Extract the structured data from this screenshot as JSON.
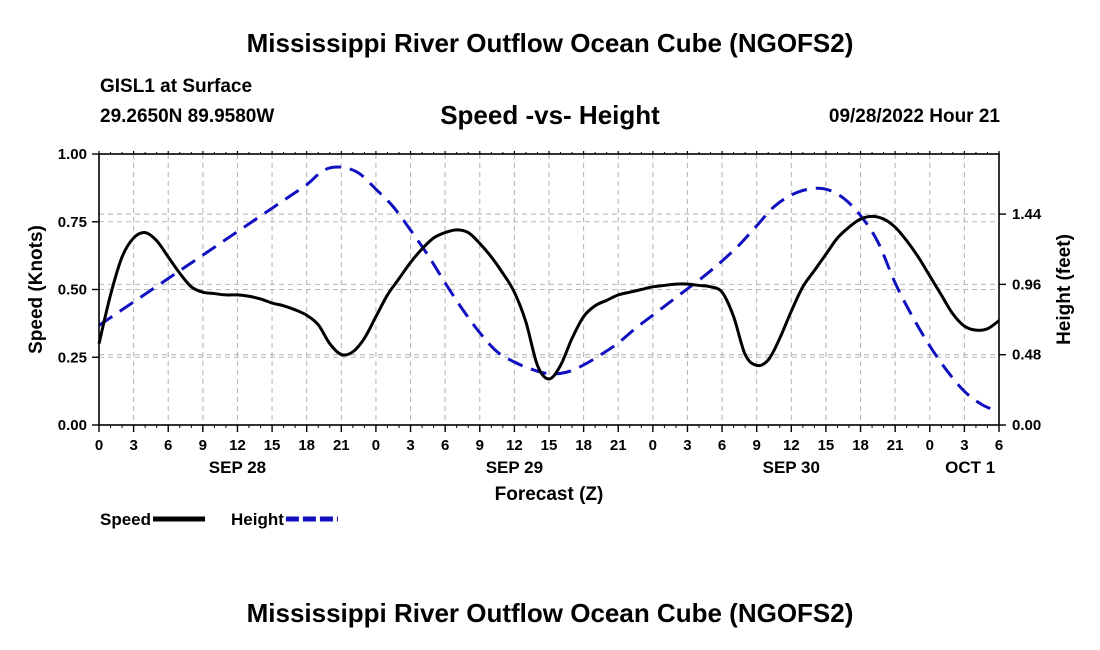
{
  "header": {
    "title": "Mississippi River Outflow Ocean Cube (NGOFS2)",
    "station": "GISL1 at Surface",
    "coords": "29.2650N  89.9580W",
    "subtitle": "Speed -vs- Height",
    "datetime": "09/28/2022 Hour 21"
  },
  "footer": {
    "title": "Mississippi River Outflow Ocean Cube (NGOFS2)"
  },
  "chart_data": {
    "type": "line",
    "title": "Speed -vs- Height",
    "xlabel": "Forecast (Z)",
    "ylabel": "Speed (Knots)",
    "y2label": "Height (feet)",
    "xlim": [
      0,
      78
    ],
    "ylim": [
      0,
      1
    ],
    "y2lim": [
      0,
      1.85
    ],
    "x_ticks": [
      0,
      3,
      6,
      9,
      12,
      15,
      18,
      21,
      24,
      27,
      30,
      33,
      36,
      39,
      42,
      45,
      48,
      51,
      54,
      57,
      60,
      63,
      66,
      69,
      72,
      75,
      78
    ],
    "x_tick_labels": [
      "0",
      "3",
      "6",
      "9",
      "12",
      "15",
      "18",
      "21",
      "0",
      "3",
      "6",
      "9",
      "12",
      "15",
      "18",
      "21",
      "0",
      "3",
      "6",
      "9",
      "12",
      "15",
      "18",
      "21",
      "0",
      "3",
      "6"
    ],
    "date_labels": [
      {
        "x": 12,
        "label": "SEP 28"
      },
      {
        "x": 36,
        "label": "SEP 29"
      },
      {
        "x": 60,
        "label": "SEP 30"
      },
      {
        "x": 75.5,
        "label": "OCT 1"
      }
    ],
    "y_ticks": [
      0,
      0.25,
      0.5,
      0.75,
      1.0
    ],
    "y_tick_labels": [
      "0.00",
      "0.25",
      "0.50",
      "0.75",
      "1.00"
    ],
    "y2_ticks": [
      0,
      0.48,
      0.96,
      1.44
    ],
    "y2_tick_labels": [
      "0.00",
      "0.48",
      "0.96",
      "1.44"
    ],
    "grid": true,
    "series": [
      {
        "name": "Speed",
        "axis": "left",
        "color": "#000000",
        "style": "solid",
        "x": [
          0,
          1,
          2,
          3,
          4,
          5,
          6,
          7,
          8,
          9,
          10,
          11,
          12,
          13,
          14,
          15,
          16,
          17,
          18,
          19,
          20,
          21,
          22,
          23,
          24,
          25,
          26,
          27,
          28,
          29,
          30,
          31,
          32,
          33,
          34,
          35,
          36,
          37,
          38,
          39,
          40,
          41,
          42,
          43,
          44,
          45,
          46,
          47,
          48,
          49,
          50,
          51,
          52,
          53,
          54,
          55,
          56,
          57,
          58,
          59,
          60,
          61,
          62,
          63,
          64,
          65,
          66,
          67,
          68,
          69,
          70,
          71,
          72,
          73,
          74,
          75,
          76,
          77,
          78
        ],
        "values": [
          0.3,
          0.48,
          0.62,
          0.69,
          0.71,
          0.68,
          0.62,
          0.56,
          0.51,
          0.49,
          0.485,
          0.48,
          0.48,
          0.475,
          0.465,
          0.45,
          0.44,
          0.425,
          0.405,
          0.37,
          0.3,
          0.26,
          0.27,
          0.32,
          0.4,
          0.48,
          0.54,
          0.6,
          0.65,
          0.69,
          0.71,
          0.72,
          0.71,
          0.67,
          0.62,
          0.56,
          0.49,
          0.38,
          0.22,
          0.17,
          0.22,
          0.32,
          0.4,
          0.44,
          0.46,
          0.48,
          0.49,
          0.5,
          0.51,
          0.515,
          0.52,
          0.52,
          0.515,
          0.51,
          0.49,
          0.4,
          0.26,
          0.22,
          0.24,
          0.32,
          0.42,
          0.51,
          0.57,
          0.63,
          0.69,
          0.73,
          0.76,
          0.77,
          0.76,
          0.73,
          0.68,
          0.62,
          0.55,
          0.48,
          0.41,
          0.365,
          0.35,
          0.355,
          0.385
        ]
      },
      {
        "name": "Height",
        "axis": "right",
        "color": "#1010c0",
        "style": "dashed",
        "x": [
          0,
          1.5,
          3,
          4.5,
          6,
          7.5,
          9,
          10.5,
          12,
          13.5,
          15,
          16.5,
          18,
          19.5,
          21,
          22.5,
          24,
          25.5,
          27,
          28.5,
          30,
          31.5,
          33,
          34.5,
          36,
          37.5,
          39,
          40.5,
          42,
          43.5,
          45,
          46.5,
          48,
          49.5,
          51,
          52.5,
          54,
          55.5,
          57,
          58.5,
          60,
          61.5,
          63,
          64.5,
          66,
          67.5,
          69,
          70.5,
          72,
          73.5,
          75,
          76.5,
          78
        ],
        "values": [
          0.68,
          0.76,
          0.84,
          0.92,
          1.0,
          1.08,
          1.16,
          1.24,
          1.32,
          1.4,
          1.48,
          1.56,
          1.64,
          1.74,
          1.76,
          1.72,
          1.61,
          1.49,
          1.33,
          1.16,
          0.97,
          0.79,
          0.63,
          0.5,
          0.43,
          0.38,
          0.35,
          0.36,
          0.41,
          0.48,
          0.56,
          0.66,
          0.75,
          0.84,
          0.93,
          1.02,
          1.12,
          1.23,
          1.36,
          1.49,
          1.57,
          1.61,
          1.61,
          1.55,
          1.43,
          1.25,
          0.97,
          0.74,
          0.54,
          0.37,
          0.23,
          0.14,
          0.09
        ]
      }
    ],
    "legend": {
      "placement": "bottom-left",
      "items": [
        {
          "label": "Speed",
          "color": "#000000",
          "style": "solid"
        },
        {
          "label": "Height",
          "color": "#1010c0",
          "style": "dashed"
        }
      ]
    }
  }
}
